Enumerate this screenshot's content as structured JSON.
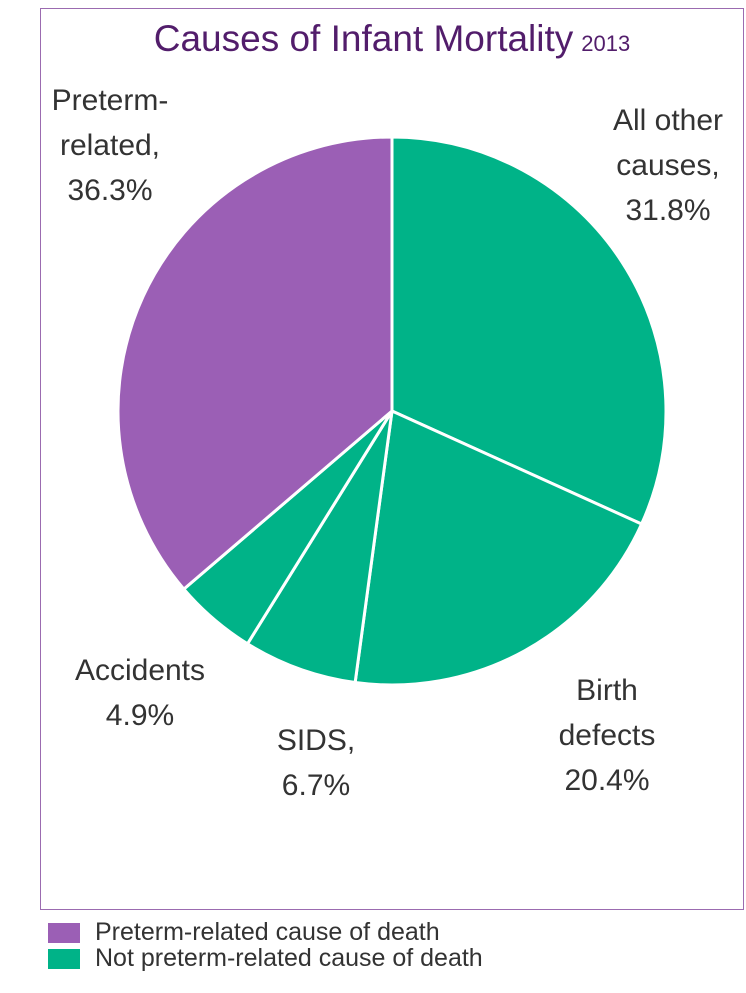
{
  "chart_data": {
    "type": "pie",
    "title": "Causes of Infant Mortality",
    "subtitle": "2013",
    "categories": [
      "All other causes,",
      "Birth defects",
      "SIDS,",
      "Accidents",
      "Preterm-related,"
    ],
    "values": [
      31.8,
      20.4,
      6.7,
      4.9,
      36.3
    ],
    "value_labels": [
      "31.8%",
      "20.4%",
      "6.7%",
      "4.9%",
      "36.3%"
    ],
    "colors": [
      "#00b388",
      "#00b388",
      "#00b388",
      "#00b388",
      "#9b5fb5"
    ],
    "legend": [
      {
        "label": "Preterm-related cause of death",
        "color": "#9b5fb5"
      },
      {
        "label": "Not preterm-related cause of death",
        "color": "#00b388"
      }
    ]
  }
}
